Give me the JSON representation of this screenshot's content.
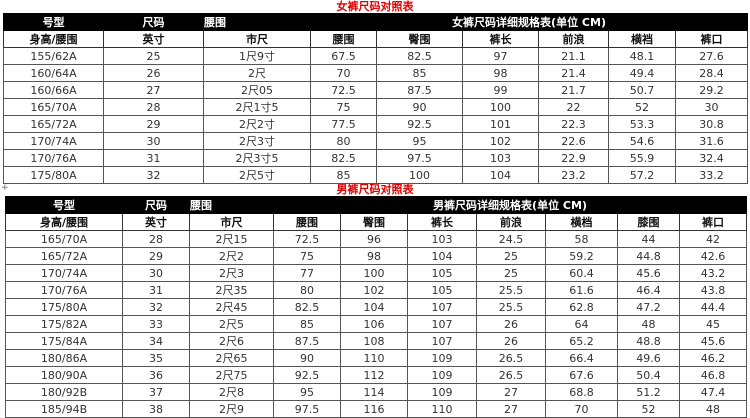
{
  "women": {
    "title": "女裤尺码对照表",
    "header1": [
      "号型",
      "尺码",
      "腰围",
      "女裤尺码详细规格表(单位 CM)"
    ],
    "header2": [
      "身高/腰围",
      "英寸",
      "市尺",
      "腰围",
      "臀围",
      "裤长",
      "前浪",
      "横裆",
      "裤口"
    ],
    "rows": [
      [
        "155/62A",
        "25",
        "1尺9寸",
        "67.5",
        "82.5",
        "97",
        "21.1",
        "48.1",
        "27.6"
      ],
      [
        "160/64A",
        "26",
        "2尺",
        "70",
        "85",
        "98",
        "21.4",
        "49.4",
        "28.4"
      ],
      [
        "160/66A",
        "27",
        "2尺05",
        "72.5",
        "87.5",
        "99",
        "21.7",
        "50.7",
        "29.2"
      ],
      [
        "165/70A",
        "28",
        "2尺1寸5",
        "75",
        "90",
        "100",
        "22",
        "52",
        "30"
      ],
      [
        "165/72A",
        "29",
        "2尺2寸",
        "77.5",
        "92.5",
        "101",
        "22.3",
        "53.3",
        "30.8"
      ],
      [
        "170/74A",
        "30",
        "2尺3寸",
        "80",
        "95",
        "102",
        "22.6",
        "54.6",
        "31.6"
      ],
      [
        "170/76A",
        "31",
        "2尺3寸5",
        "82.5",
        "97.5",
        "103",
        "22.9",
        "55.9",
        "32.4"
      ],
      [
        "175/80A",
        "32",
        "2尺5寸",
        "85",
        "100",
        "104",
        "23.2",
        "57.2",
        "33.2"
      ]
    ]
  },
  "men": {
    "title": "男裤尺码对照表",
    "header1": [
      "号型",
      "尺码",
      "腰围",
      "男裤尺码详细规格表(单位 CM)"
    ],
    "header2": [
      "身高/腰围",
      "英寸",
      "市尺",
      "腰围",
      "臀围",
      "裤长",
      "前浪",
      "横档",
      "膝围",
      "裤口"
    ],
    "rows": [
      [
        "165/70A",
        "28",
        "2尺15",
        "72.5",
        "96",
        "103",
        "24.5",
        "58",
        "44",
        "42"
      ],
      [
        "165/72A",
        "29",
        "2尺2",
        "75",
        "98",
        "104",
        "25",
        "59.2",
        "44.8",
        "42.6"
      ],
      [
        "170/74A",
        "30",
        "2尺3",
        "77",
        "100",
        "105",
        "25",
        "60.4",
        "45.6",
        "43.2"
      ],
      [
        "170/76A",
        "31",
        "2尺35",
        "80",
        "102",
        "105",
        "25.5",
        "61.6",
        "46.4",
        "43.8"
      ],
      [
        "175/80A",
        "32",
        "2尺45",
        "82.5",
        "104",
        "107",
        "25.5",
        "62.8",
        "47.2",
        "44.4"
      ],
      [
        "175/82A",
        "33",
        "2尺5",
        "85",
        "106",
        "107",
        "26",
        "64",
        "48",
        "45"
      ],
      [
        "175/84A",
        "34",
        "2尺6",
        "87.5",
        "108",
        "107",
        "26",
        "65.2",
        "48.8",
        "45.6"
      ],
      [
        "180/86A",
        "35",
        "2尺65",
        "90",
        "110",
        "109",
        "26.5",
        "66.4",
        "49.6",
        "46.2"
      ],
      [
        "180/90A",
        "36",
        "2尺75",
        "92.5",
        "112",
        "109",
        "26.5",
        "67.6",
        "50.4",
        "46.8"
      ],
      [
        "180/92B",
        "37",
        "2尺8",
        "95",
        "114",
        "109",
        "27",
        "68.8",
        "51.2",
        "47.4"
      ],
      [
        "185/94B",
        "38",
        "2尺9",
        "97.5",
        "116",
        "110",
        "27",
        "70",
        "52",
        "48"
      ]
    ]
  },
  "colors": {
    "title": "#e00000",
    "header_bg": "#000000"
  }
}
